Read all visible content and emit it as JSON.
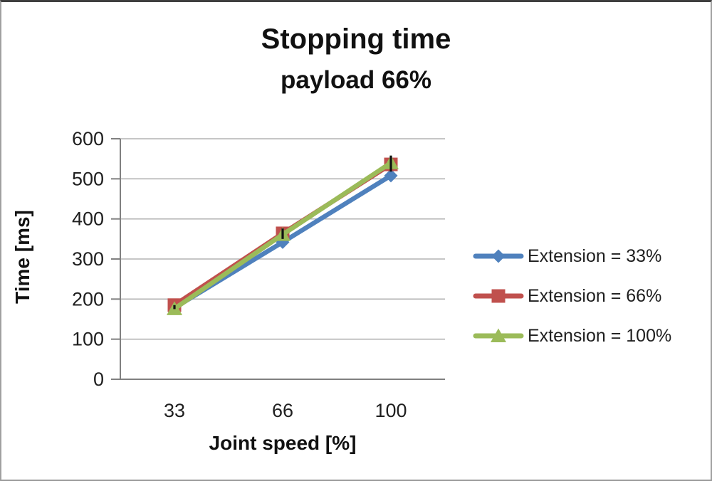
{
  "title": "Stopping time",
  "subtitle": "payload 66%",
  "chart_data": {
    "type": "line",
    "categories": [
      "33",
      "66",
      "100"
    ],
    "x_values": [
      33,
      66,
      100
    ],
    "series": [
      {
        "name": "Extension = 33%",
        "marker": "diamond",
        "color": "#4F81BD",
        "values": [
          178,
          342,
          508
        ]
      },
      {
        "name": "Extension = 66%",
        "marker": "square",
        "color": "#C0504D",
        "values": [
          185,
          364,
          536
        ]
      },
      {
        "name": "Extension = 100%",
        "marker": "triangle",
        "color": "#9BBB59",
        "values": [
          176,
          361,
          540
        ]
      }
    ],
    "error_bars": [
      {
        "category": "33",
        "center": 180,
        "half": 5
      },
      {
        "category": "66",
        "center": 363,
        "half": 13
      },
      {
        "category": "100",
        "center": 538,
        "half": 20
      }
    ],
    "title": "Stopping time",
    "subtitle": "payload 66%",
    "xlabel": "Joint speed [%]",
    "ylabel": "Time [ms]",
    "ylim": [
      0,
      600
    ],
    "y_ticks": [
      0,
      100,
      200,
      300,
      400,
      500,
      600
    ],
    "grid": true,
    "legend_position": "right",
    "colors": {
      "gridline": "#b3b3b3",
      "axis": "#808080",
      "tick_text": "#1f1f1f",
      "error_bar": "#111111"
    }
  }
}
